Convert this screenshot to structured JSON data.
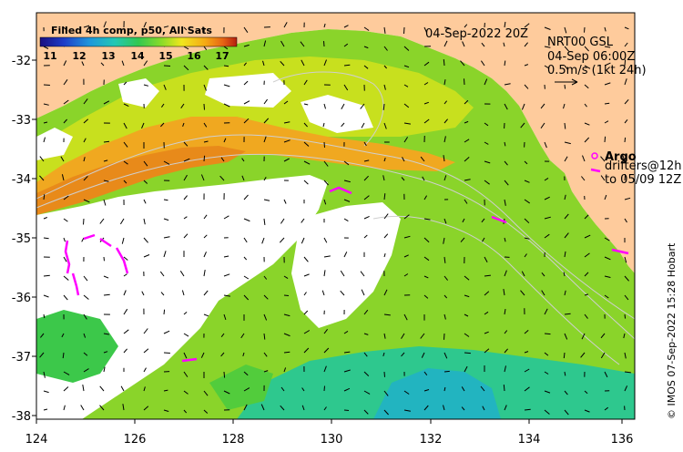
{
  "map": {
    "date_label": "04-Sep-2022 20Z",
    "model_label": "NRT00 GSL",
    "model_time": "04-Sep 06:00Z",
    "scale_label": "0.5m/s (1kt 24h)",
    "argo_label": "Argo",
    "drifters_label_1": "drifters@12h",
    "drifters_label_2": "to 05/09 12Z",
    "credit": "© IMOS 07-Sep-2022 15:28 Hobart"
  },
  "colorbar": {
    "title": "Filled 4h comp, p50, All Sats",
    "ticks": [
      "11",
      "12",
      "13",
      "14",
      "15",
      "16",
      "17"
    ],
    "colors": [
      "#1a0f80",
      "#1e3cc8",
      "#1e96dc",
      "#23c8b4",
      "#32c850",
      "#8cdc28",
      "#f0e61e",
      "#f5aa14",
      "#e66414",
      "#b41e0f"
    ]
  },
  "axes": {
    "x_ticks": [
      "124",
      "126",
      "128",
      "130",
      "132",
      "134",
      "136"
    ],
    "y_ticks": [
      "-32",
      "-33",
      "-34",
      "-35",
      "-36",
      "-37",
      "-38"
    ]
  },
  "colors": {
    "land": "#fecb9c",
    "drifter": "#ff00ff",
    "argo": "#ff00ff"
  }
}
